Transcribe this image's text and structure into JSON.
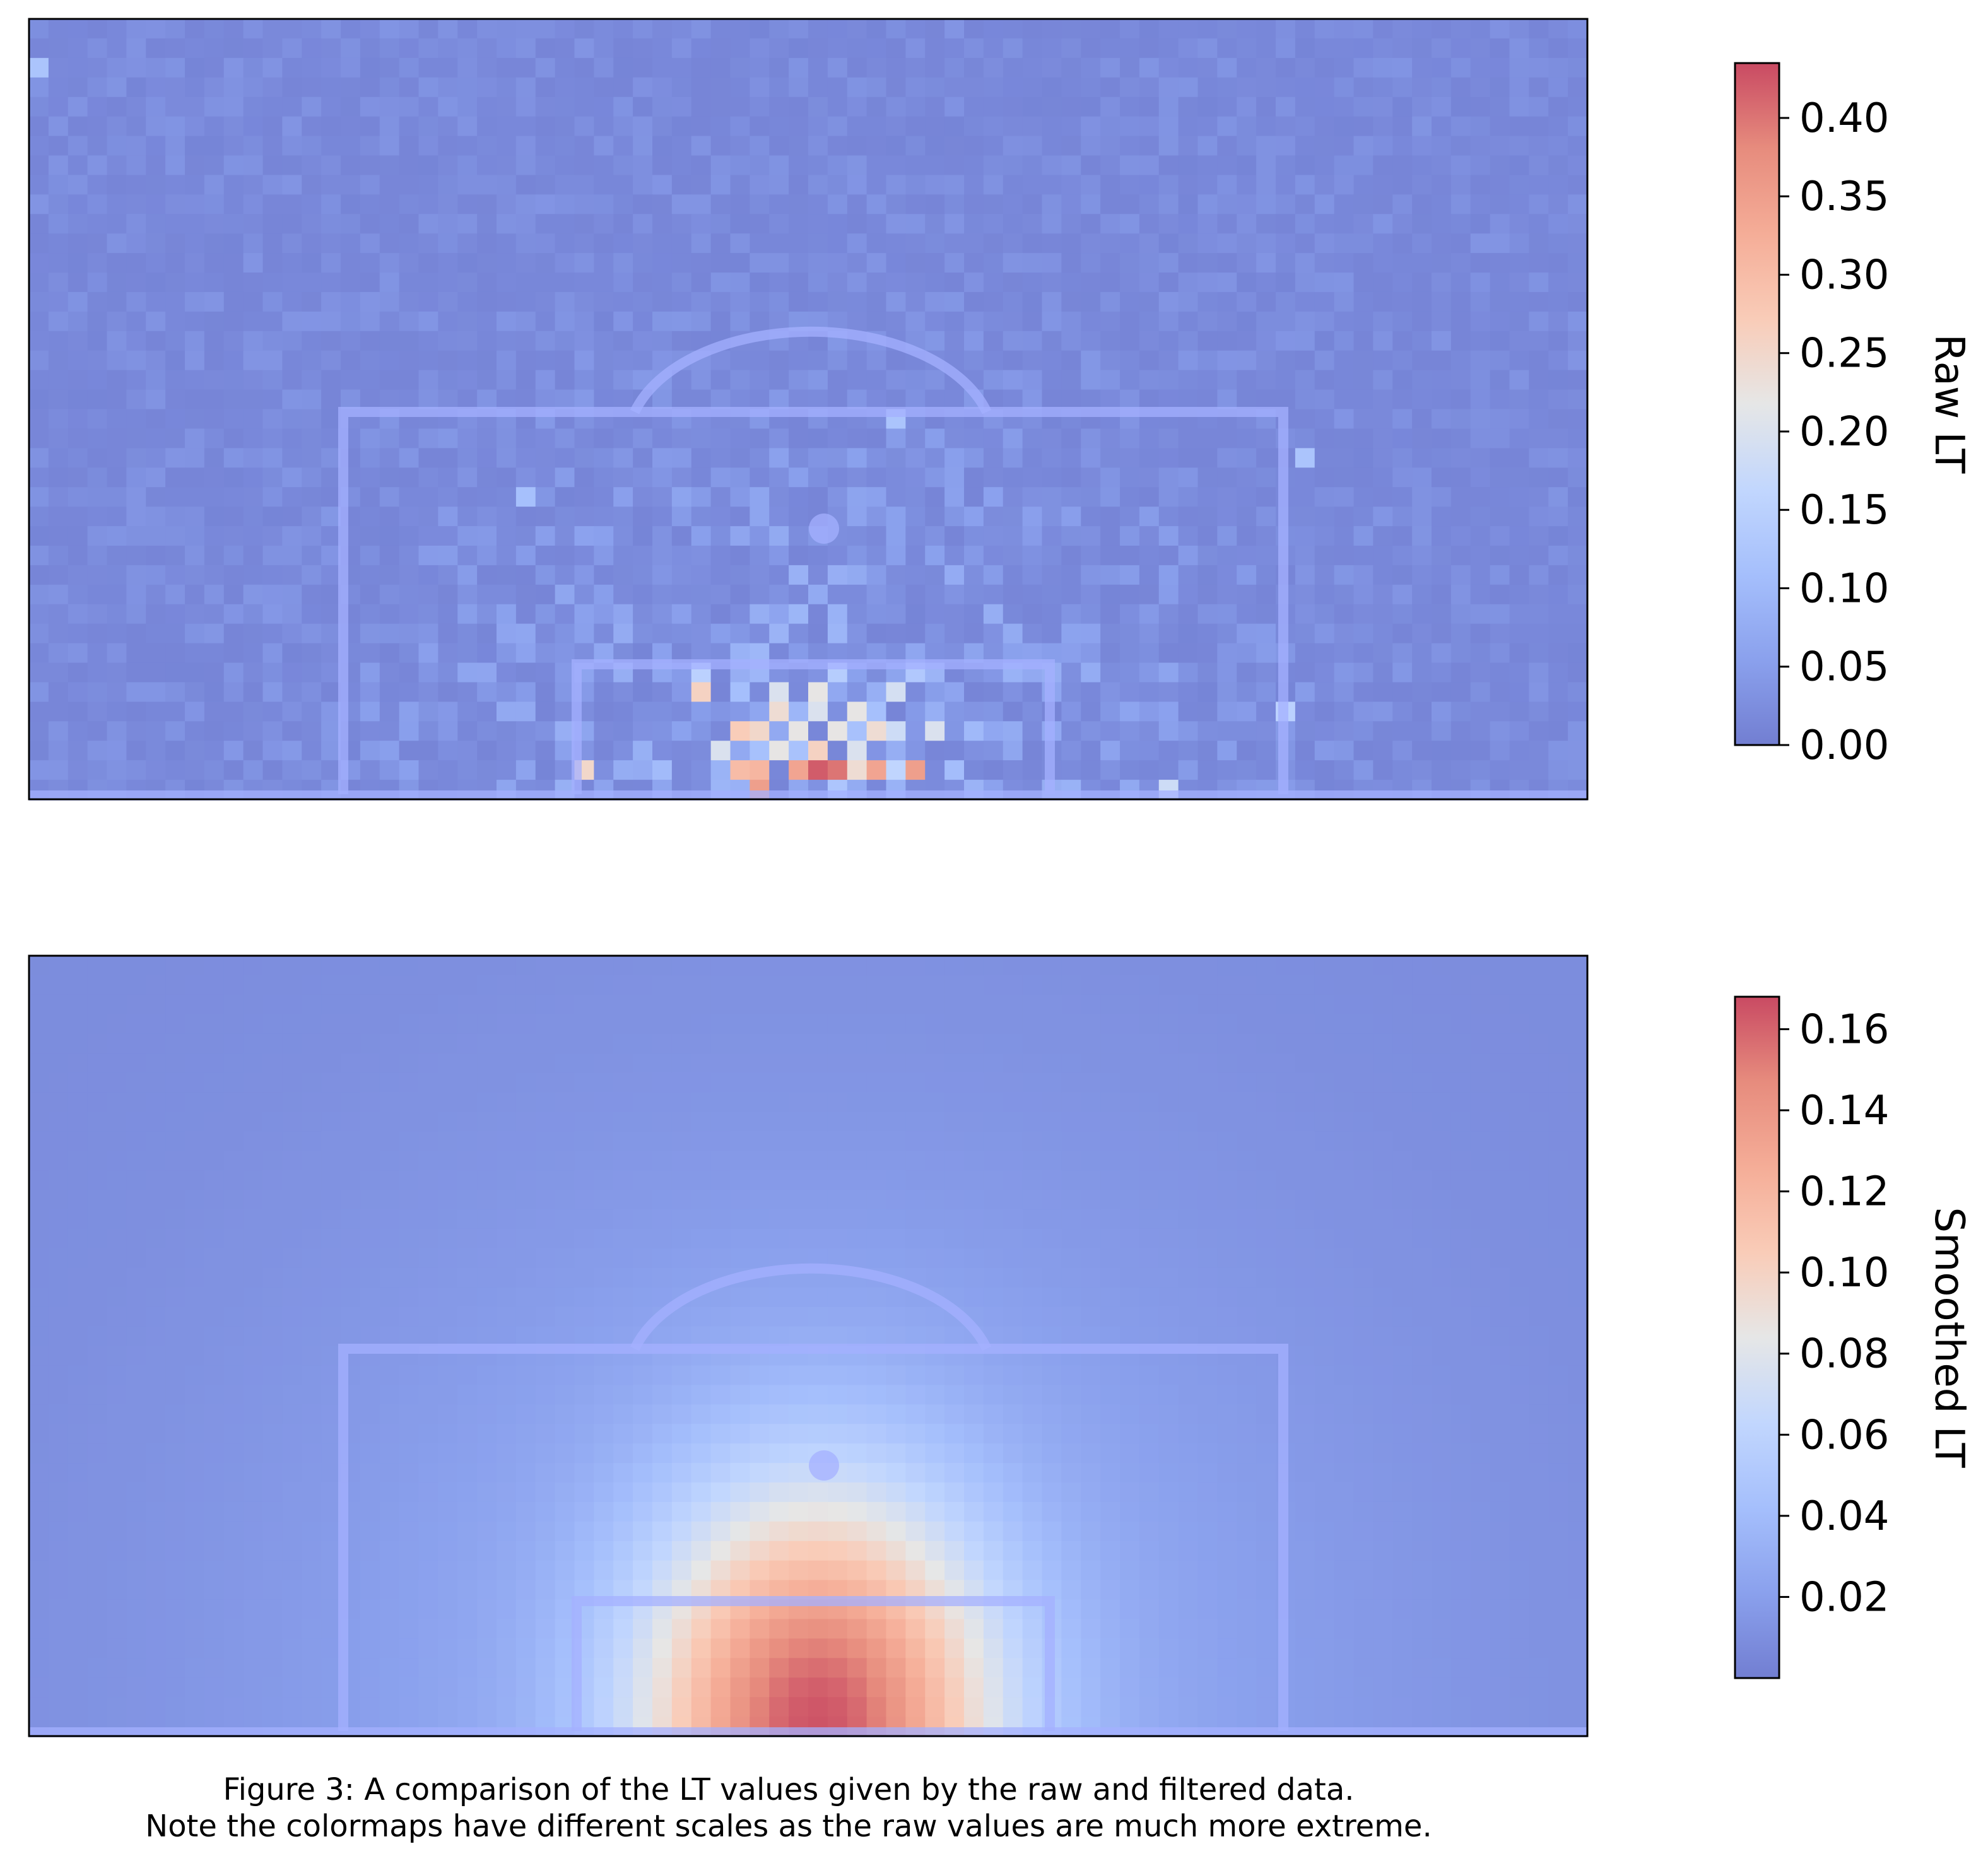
{
  "chart_data": [
    {
      "type": "heatmap",
      "title": "",
      "xlabel": "",
      "ylabel": "",
      "grid": false,
      "colormap": "coolwarm",
      "colorbar": {
        "label": "Raw LT",
        "vmin": 0.0,
        "vmax": 0.435,
        "ticks": [
          0.0,
          0.05,
          0.1,
          0.15,
          0.2,
          0.25,
          0.3,
          0.35,
          0.4
        ],
        "tick_labels": [
          "0.00",
          "0.05",
          "0.10",
          "0.15",
          "0.20",
          "0.25",
          "0.30",
          "0.35",
          "0.40"
        ]
      },
      "grid_size": {
        "cols": 80,
        "rows": 40
      },
      "background_value": 0.01,
      "hotspots": [
        {
          "col": 40,
          "row": 38,
          "value": 0.42
        },
        {
          "col": 41,
          "row": 38,
          "value": 0.4
        },
        {
          "col": 39,
          "row": 38,
          "value": 0.34
        },
        {
          "col": 43,
          "row": 38,
          "value": 0.34
        },
        {
          "col": 45,
          "row": 38,
          "value": 0.35
        },
        {
          "col": 37,
          "row": 39,
          "value": 0.35
        },
        {
          "col": 36,
          "row": 38,
          "value": 0.3
        },
        {
          "col": 37,
          "row": 38,
          "value": 0.31
        },
        {
          "col": 42,
          "row": 38,
          "value": 0.24
        },
        {
          "col": 44,
          "row": 38,
          "value": 0.16
        },
        {
          "col": 28,
          "row": 38,
          "value": 0.25
        },
        {
          "col": 36,
          "row": 36,
          "value": 0.27
        },
        {
          "col": 37,
          "row": 36,
          "value": 0.25
        },
        {
          "col": 39,
          "row": 36,
          "value": 0.22
        },
        {
          "col": 41,
          "row": 36,
          "value": 0.22
        },
        {
          "col": 43,
          "row": 36,
          "value": 0.24
        },
        {
          "col": 34,
          "row": 34,
          "value": 0.26
        },
        {
          "col": 38,
          "row": 35,
          "value": 0.24
        },
        {
          "col": 40,
          "row": 35,
          "value": 0.2
        },
        {
          "col": 42,
          "row": 35,
          "value": 0.22
        },
        {
          "col": 35,
          "row": 37,
          "value": 0.2
        },
        {
          "col": 38,
          "row": 37,
          "value": 0.22
        },
        {
          "col": 40,
          "row": 37,
          "value": 0.26
        },
        {
          "col": 42,
          "row": 37,
          "value": 0.2
        },
        {
          "col": 44,
          "row": 36,
          "value": 0.18
        },
        {
          "col": 46,
          "row": 36,
          "value": 0.2
        },
        {
          "col": 38,
          "row": 34,
          "value": 0.2
        },
        {
          "col": 40,
          "row": 34,
          "value": 0.22
        },
        {
          "col": 44,
          "row": 34,
          "value": 0.19
        },
        {
          "col": 34,
          "row": 33,
          "value": 0.15
        },
        {
          "col": 41,
          "row": 33,
          "value": 0.14
        },
        {
          "col": 45,
          "row": 33,
          "value": 0.13
        },
        {
          "col": 58,
          "row": 39,
          "value": 0.18
        },
        {
          "col": 64,
          "row": 35,
          "value": 0.15
        },
        {
          "col": 65,
          "row": 22,
          "value": 0.12
        },
        {
          "col": 0,
          "row": 2,
          "value": 0.12
        },
        {
          "col": 25,
          "row": 24,
          "value": 0.11
        },
        {
          "col": 44,
          "row": 20,
          "value": 0.12
        }
      ],
      "overlay": "football pitch penalty area markings"
    },
    {
      "type": "heatmap",
      "title": "",
      "xlabel": "",
      "ylabel": "",
      "grid": false,
      "colormap": "coolwarm",
      "colorbar": {
        "label": "Smoothed LT",
        "vmin": 0.0,
        "vmax": 0.168,
        "ticks": [
          0.02,
          0.04,
          0.06,
          0.08,
          0.1,
          0.12,
          0.14,
          0.16
        ],
        "tick_labels": [
          "0.02",
          "0.04",
          "0.06",
          "0.08",
          "0.10",
          "0.12",
          "0.14",
          "0.16"
        ]
      },
      "grid_size": {
        "cols": 80,
        "rows": 40
      },
      "peak": {
        "col": 40.5,
        "row": 39.5,
        "value": 0.165
      },
      "spread_cells": {
        "x": 6.5,
        "y": 8.5
      },
      "base_value": 0.008,
      "overlay": "football pitch penalty area markings"
    }
  ],
  "caption": {
    "line1": "Figure 3: A comparison of the LT values given by the raw and filtered data.",
    "line2": "Note the colormaps have different scales as the raw values are much more extreme."
  }
}
